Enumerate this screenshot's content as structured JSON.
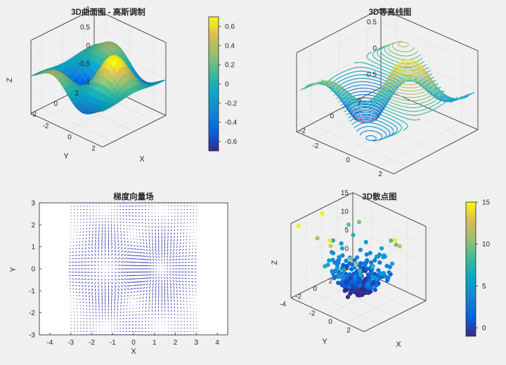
{
  "chart_data": [
    {
      "panel": "top-left",
      "type": "surface",
      "title": "3D曲面图 - 高斯调制",
      "xlabel": "X",
      "ylabel": "Y",
      "zlabel": "Z",
      "xlim": [
        -3,
        3
      ],
      "ylim": [
        -3,
        3
      ],
      "zlim": [
        -1,
        1
      ],
      "xticks": [
        -2,
        0,
        2
      ],
      "yticks": [
        -2,
        0,
        2
      ],
      "zticks": [
        -1,
        -0.5,
        0,
        0.5,
        1
      ],
      "xtick_labels": [
        "-2",
        "0",
        "2"
      ],
      "ytick_labels": [
        "-2",
        "0",
        "2"
      ],
      "ztick_labels": [
        "-1",
        "-0.5",
        "0",
        "0.5",
        "1"
      ],
      "colormap": "parula",
      "colorbar": {
        "min": -0.7,
        "max": 0.7,
        "ticks": [
          -0.6,
          -0.4,
          -0.2,
          0,
          0.2,
          0.4,
          0.6
        ],
        "tick_labels": [
          "-0.6",
          "-0.4",
          "-0.2",
          "0",
          "0.2",
          "0.4",
          "0.6"
        ]
      },
      "grid": true
    },
    {
      "panel": "top-right",
      "type": "contour3",
      "title": "3D等高线图",
      "xlim": [
        -3,
        3
      ],
      "ylim": [
        -3,
        3
      ],
      "zlim": [
        -0.75,
        0.75
      ],
      "xticks": [
        -2,
        0,
        2
      ],
      "yticks": [
        -2,
        0,
        2
      ],
      "zticks": [
        -0.5,
        0,
        0.5
      ],
      "xtick_labels": [
        "-2",
        "0",
        "2"
      ],
      "ytick_labels": [
        "-2",
        "0",
        "2"
      ],
      "ztick_labels": [
        "-0.5",
        "0",
        "0.5"
      ],
      "colormap": "parula",
      "grid": true
    },
    {
      "panel": "bottom-left",
      "type": "quiver",
      "title": "梯度向量场",
      "xlabel": "X",
      "ylabel": "Y",
      "xlim": [
        -4.5,
        4.5
      ],
      "ylim": [
        -3,
        3
      ],
      "xticks": [
        -4,
        -3,
        -2,
        -1,
        0,
        1,
        2,
        3,
        4
      ],
      "xtick_labels": [
        "-4",
        "-3",
        "-2",
        "-1",
        "0",
        "1",
        "2",
        "3",
        "4"
      ],
      "yticks": [
        -3,
        -2,
        -1,
        0,
        1,
        2,
        3
      ],
      "ytick_labels": [
        "-3",
        "-2",
        "-1",
        "0",
        "1",
        "2",
        "3"
      ],
      "grid_range": [
        -3,
        3
      ],
      "color": "#1a1a9c"
    },
    {
      "panel": "bottom-right",
      "type": "scatter3",
      "title": "3D散点图",
      "xlabel": "X",
      "ylabel": "Y",
      "zlabel": "Z",
      "xlim": [
        -4,
        4
      ],
      "ylim": [
        -4,
        4
      ],
      "zlim": [
        -5,
        15
      ],
      "xticks": [
        -2,
        0,
        2
      ],
      "yticks": [
        -4,
        -2,
        0,
        2
      ],
      "zticks": [
        -5,
        0,
        5,
        10,
        15
      ],
      "xtick_labels": [
        "-2",
        "0",
        "2"
      ],
      "ytick_labels": [
        "-4",
        "-2",
        "0",
        "2"
      ],
      "ztick_labels": [
        "-5",
        "0",
        "5",
        "10",
        "15"
      ],
      "colormap": "parula",
      "colorbar": {
        "min": -1,
        "max": 15,
        "ticks": [
          0,
          5,
          10,
          15
        ],
        "tick_labels": [
          "0",
          "5",
          "10",
          "15"
        ]
      },
      "grid": true
    }
  ]
}
